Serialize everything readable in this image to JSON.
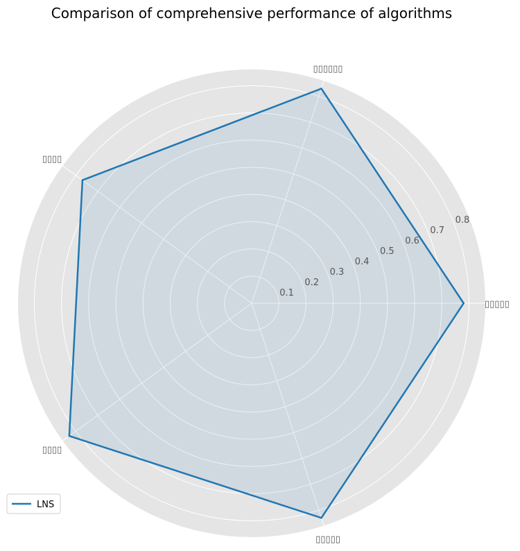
{
  "chart_data": {
    "type": "radar",
    "title": "Comparison of comprehensive performance of algorithms",
    "categories": [
      "▯▯▯▯▯",
      "▯▯▯▯▯▯",
      "▯▯▯▯",
      "▯▯▯▯",
      "▯▯▯▯▯"
    ],
    "series": [
      {
        "name": "LNS",
        "values": [
          0.78,
          0.83,
          0.77,
          0.83,
          0.83
        ],
        "color": "#1f77b4"
      }
    ],
    "rticks": [
      0.1,
      0.2,
      0.3,
      0.4,
      0.5,
      0.6,
      0.7,
      0.8
    ],
    "rlim": [
      0,
      0.86
    ],
    "grid": true,
    "legend_position": "bottom-left",
    "colors": {
      "background": "#e5e5e5",
      "grid": "#ffffff",
      "fill_alpha": 0.1
    }
  }
}
